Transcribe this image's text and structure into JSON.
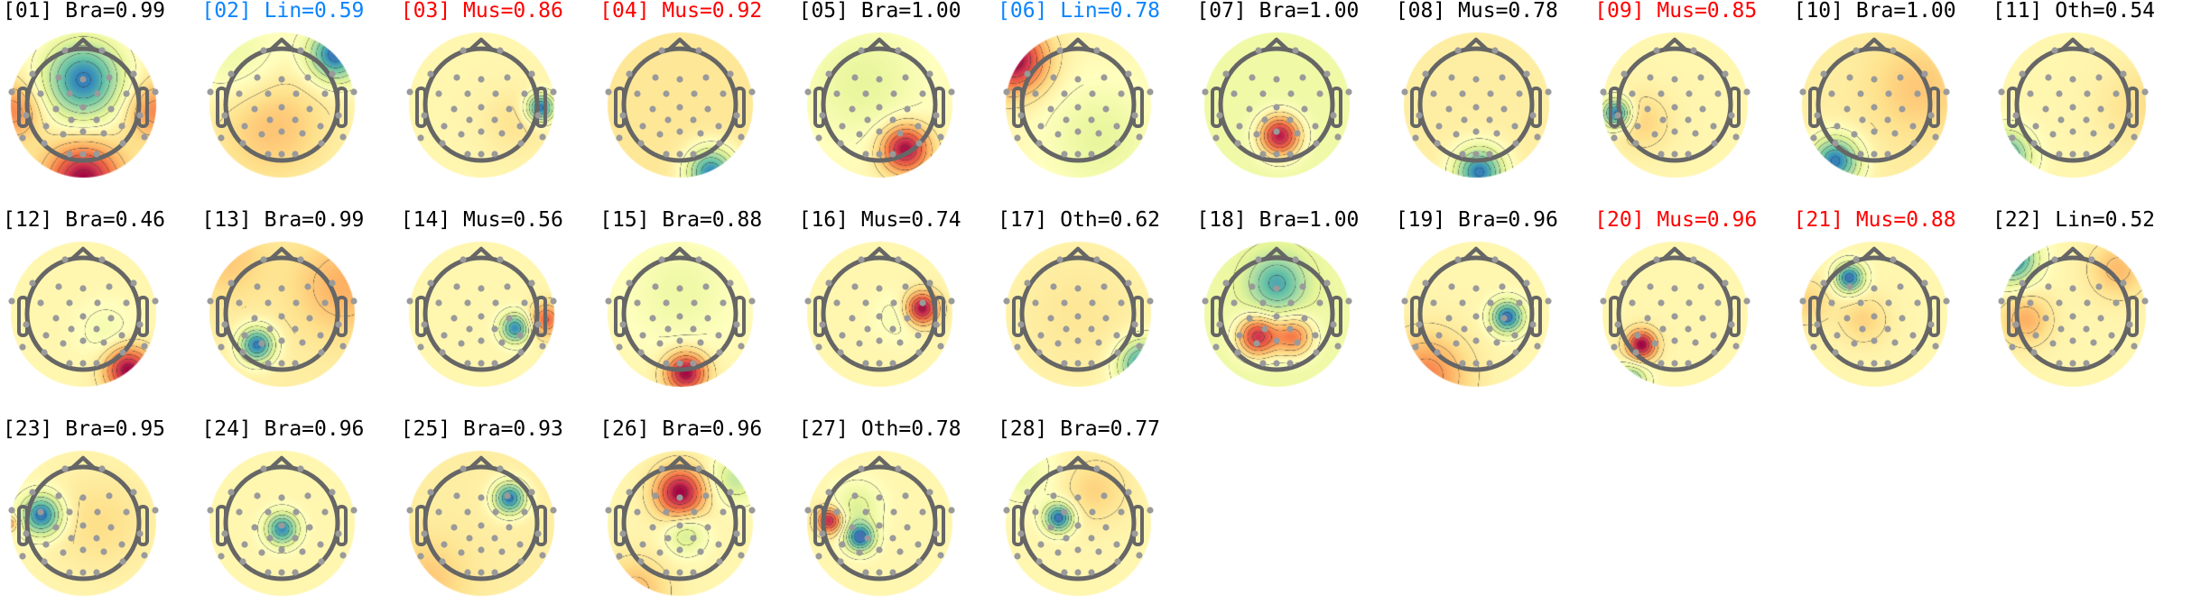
{
  "colors": {
    "Bra": "#000000",
    "Oth": "#000000",
    "Lin_flagged": "#0a84ff",
    "Mus_flagged": "#ff0000",
    "default": "#000000",
    "electrode": "#9a9a9a",
    "head_outline": "#666666",
    "contour": "#333333"
  },
  "chart_data": {
    "type": "heatmap",
    "subtype": "scalp-topomap-grid",
    "colormap": "Spectral_r",
    "contours": true,
    "components": [
      {
        "title": "[01] Bra=0.99",
        "color": "#000000",
        "sources": [
          [
            0,
            -0.45,
            -1,
            0.5
          ],
          [
            0,
            1.35,
            0.95,
            0.45
          ],
          [
            -1.25,
            0.1,
            0.45,
            0.35
          ],
          [
            1.25,
            0.1,
            0.45,
            0.35
          ]
        ],
        "base": 0.05
      },
      {
        "title": "[02] Lin=0.59",
        "color": "#0a84ff",
        "sources": [
          [
            0.95,
            -0.9,
            -1,
            0.33
          ],
          [
            -0.2,
            0.35,
            0.28,
            0.7
          ],
          [
            -0.8,
            -0.8,
            -0.22,
            0.6
          ]
        ],
        "base": 0
      },
      {
        "title": "[03] Mus=0.86",
        "color": "#ff0000",
        "sources": [
          [
            1.05,
            0.05,
            -1,
            0.17
          ],
          [
            0.6,
            0.3,
            0.12,
            0.4
          ]
        ],
        "base": 0
      },
      {
        "title": "[04] Mus=0.92",
        "color": "#ff0000",
        "sources": [
          [
            0.55,
            1.2,
            -1,
            0.3
          ]
        ],
        "base": 0.1
      },
      {
        "title": "[05] Bra=1.00",
        "color": "#000000",
        "sources": [
          [
            0.45,
            0.78,
            1,
            0.3
          ],
          [
            -0.3,
            -0.4,
            -0.25,
            0.8
          ]
        ],
        "base": 0
      },
      {
        "title": "[06] Lin=0.78",
        "color": "#0a84ff",
        "sources": [
          [
            -1.15,
            -0.8,
            1,
            0.4
          ],
          [
            0.4,
            0.6,
            -0.25,
            0.7
          ]
        ],
        "base": 0
      },
      {
        "title": "[07] Bra=1.00",
        "color": "#000000",
        "sources": [
          [
            0.05,
            0.55,
            1.1,
            0.26
          ]
        ],
        "base": -0.2
      },
      {
        "title": "[08] Mus=0.78",
        "color": "#000000",
        "sources": [
          [
            0.05,
            1.2,
            -1,
            0.3
          ]
        ],
        "base": 0.05
      },
      {
        "title": "[09] Mus=0.85",
        "color": "#ff0000",
        "sources": [
          [
            -1.05,
            0.15,
            -1,
            0.18
          ],
          [
            -0.6,
            0.3,
            0.2,
            0.35
          ]
        ],
        "base": 0
      },
      {
        "title": "[10] Bra=1.00",
        "color": "#000000",
        "sources": [
          [
            -0.7,
            1.0,
            -1,
            0.3
          ],
          [
            0.8,
            -0.3,
            0.2,
            0.6
          ]
        ],
        "base": 0.05
      },
      {
        "title": "[11] Oth=0.54",
        "color": "#000000",
        "sources": [
          [
            -1.2,
            0.9,
            -0.8,
            0.3
          ],
          [
            1.2,
            0,
            0.15,
            0.5
          ]
        ],
        "base": 0
      },
      {
        "title": "[12] Bra=0.46",
        "color": "#000000",
        "sources": [
          [
            0.8,
            1.0,
            1,
            0.28
          ],
          [
            0.4,
            0.3,
            -0.15,
            0.35
          ]
        ],
        "base": 0
      },
      {
        "title": "[13] Bra=0.99",
        "color": "#000000",
        "sources": [
          [
            -0.45,
            0.55,
            -1,
            0.22
          ],
          [
            1.1,
            -0.5,
            0.3,
            0.6
          ],
          [
            -1,
            -1,
            0.2,
            0.5
          ]
        ],
        "base": 0.05
      },
      {
        "title": "[14] Mus=0.56",
        "color": "#000000",
        "sources": [
          [
            0.6,
            0.25,
            -0.9,
            0.18
          ],
          [
            1.15,
            0.1,
            0.6,
            0.2
          ]
        ],
        "base": 0
      },
      {
        "title": "[15] Bra=0.88",
        "color": "#000000",
        "sources": [
          [
            0.1,
            1.05,
            1,
            0.25
          ],
          [
            0,
            -0.4,
            -0.2,
            0.7
          ]
        ],
        "base": 0
      },
      {
        "title": "[16] Mus=0.74",
        "color": "#000000",
        "sources": [
          [
            0.75,
            -0.1,
            1,
            0.2
          ],
          [
            0.35,
            0.05,
            -0.15,
            0.3
          ]
        ],
        "base": 0
      },
      {
        "title": "[17] Oth=0.62",
        "color": "#000000",
        "sources": [
          [
            1.15,
            0.9,
            -0.9,
            0.3
          ],
          [
            0,
            0,
            0.1,
            0.8
          ]
        ],
        "base": 0
      },
      {
        "title": "[18] Bra=1.00",
        "color": "#000000",
        "sources": [
          [
            0,
            -0.55,
            -0.6,
            0.35
          ],
          [
            -0.35,
            0.4,
            1,
            0.25
          ],
          [
            0.3,
            0.4,
            0.7,
            0.25
          ]
        ],
        "base": -0.2
      },
      {
        "title": "[19] Bra=0.96",
        "color": "#000000",
        "sources": [
          [
            0.55,
            0.05,
            -1,
            0.2
          ],
          [
            -0.9,
            1.1,
            0.5,
            0.5
          ]
        ],
        "base": 0
      },
      {
        "title": "[20] Mus=0.96",
        "color": "#ff0000",
        "sources": [
          [
            -0.6,
            0.55,
            1,
            0.18
          ],
          [
            -0.8,
            1.2,
            -0.7,
            0.2
          ]
        ],
        "base": 0
      },
      {
        "title": "[21] Mus=0.88",
        "color": "#ff0000",
        "sources": [
          [
            -0.45,
            -0.65,
            -1,
            0.18
          ],
          [
            -0.2,
            0.1,
            0.2,
            0.3
          ],
          [
            -1.2,
            -0.2,
            0.2,
            0.3
          ]
        ],
        "base": 0
      },
      {
        "title": "[22] Lin=0.52",
        "color": "#000000",
        "sources": [
          [
            -1.1,
            -1.0,
            -1,
            0.3
          ],
          [
            -0.85,
            0.1,
            0.35,
            0.3
          ],
          [
            0.8,
            -0.8,
            0.3,
            0.35
          ]
        ],
        "base": 0
      },
      {
        "title": "[23] Bra=0.95",
        "color": "#000000",
        "sources": [
          [
            -0.75,
            -0.15,
            -1,
            0.25
          ],
          [
            0.3,
            0,
            0.15,
            0.6
          ],
          [
            -1.3,
            0,
            0.4,
            0.1
          ]
        ],
        "base": 0
      },
      {
        "title": "[24] Bra=0.96",
        "color": "#000000",
        "sources": [
          [
            0,
            0.1,
            -0.9,
            0.2
          ]
        ],
        "base": 0
      },
      {
        "title": "[25] Bra=0.93",
        "color": "#000000",
        "sources": [
          [
            0.5,
            -0.45,
            -1,
            0.2
          ],
          [
            -1,
            1,
            0.2,
            0.5
          ]
        ],
        "base": 0.05
      },
      {
        "title": "[26] Bra=0.96",
        "color": "#000000",
        "sources": [
          [
            0,
            -0.55,
            1,
            0.3
          ],
          [
            0.1,
            0.2,
            -0.35,
            0.25
          ],
          [
            1,
            -0.8,
            -0.4,
            0.3
          ],
          [
            -0.8,
            1.2,
            0.3,
            0.4
          ]
        ],
        "base": 0
      },
      {
        "title": "[27] Oth=0.78",
        "color": "#000000",
        "sources": [
          [
            -0.9,
            -0.05,
            0.9,
            0.16
          ],
          [
            -0.35,
            0.25,
            -1,
            0.18
          ],
          [
            -0.4,
            -0.3,
            -0.3,
            0.3
          ]
        ],
        "base": 0
      },
      {
        "title": "[28] Bra=0.77",
        "color": "#000000",
        "sources": [
          [
            -0.35,
            -0.1,
            -1,
            0.18
          ],
          [
            0.3,
            -0.6,
            0.2,
            0.4
          ],
          [
            -1,
            -0.9,
            -0.2,
            0.4
          ]
        ],
        "base": 0
      }
    ]
  }
}
